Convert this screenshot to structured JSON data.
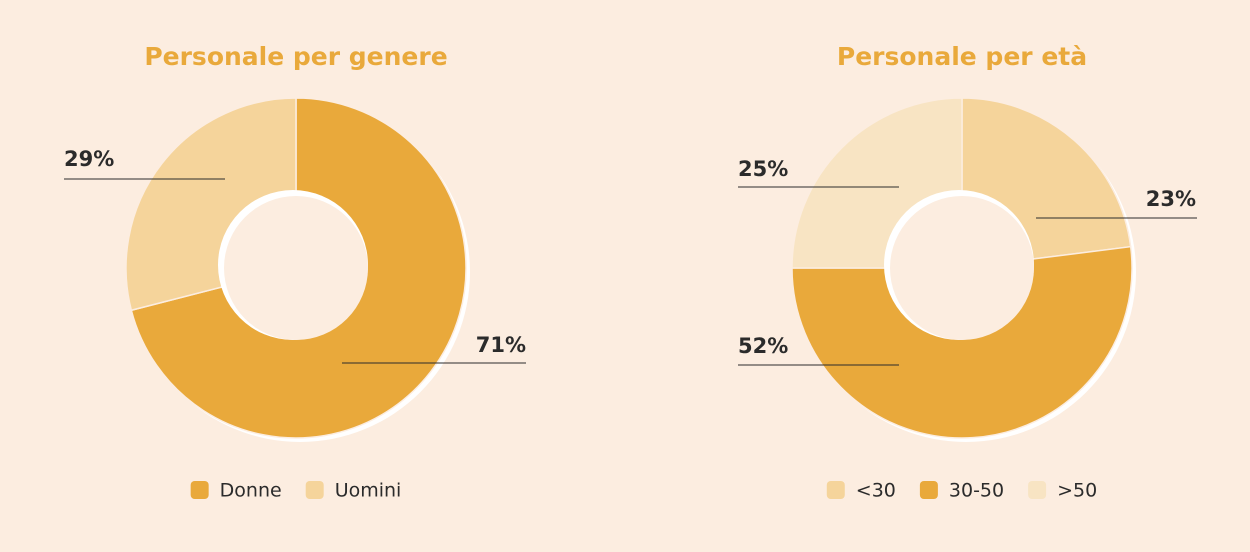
{
  "chart_data": [
    {
      "type": "pie",
      "title": "Personale per genere",
      "categories": [
        "Donne",
        "Uomini"
      ],
      "values": [
        71,
        29
      ],
      "value_labels": [
        "71%",
        "29%"
      ],
      "colors": [
        "#e9a93b",
        "#f5d49b"
      ]
    },
    {
      "type": "pie",
      "title": "Personale per età",
      "categories": [
        "<30",
        "30-50",
        ">50"
      ],
      "values": [
        23,
        52,
        25
      ],
      "value_labels": [
        "23%",
        "52%",
        "25%"
      ],
      "colors": [
        "#f5d49b",
        "#e9a93b",
        "#f8e4c3"
      ]
    }
  ]
}
